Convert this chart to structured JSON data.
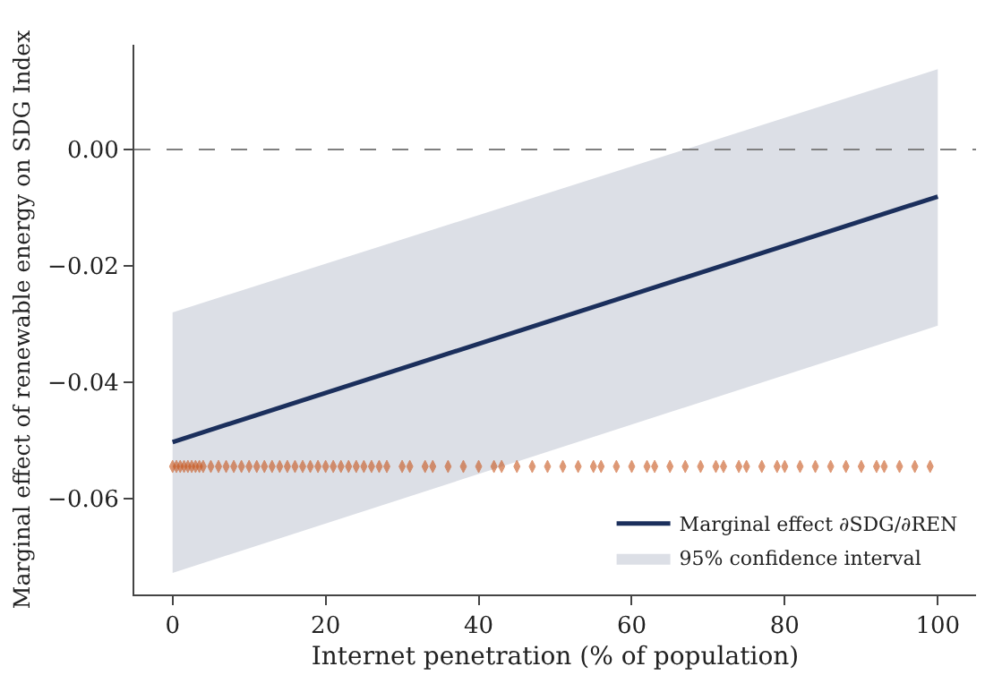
{
  "chart_data": {
    "type": "line",
    "xlabel": "Internet penetration (% of population)",
    "ylabel": "Marginal effect of renewable energy on SDG Index",
    "xlim": [
      -5,
      105
    ],
    "xticks": [
      0,
      20,
      40,
      60,
      80,
      100
    ],
    "ylim": [
      -0.0765,
      0.018
    ],
    "yticks": [
      {
        "value": -0.06,
        "label": "−0.06"
      },
      {
        "value": -0.04,
        "label": "−0.04"
      },
      {
        "value": -0.02,
        "label": "−0.02"
      },
      {
        "value": 0,
        "label": "0.00"
      }
    ],
    "series": [
      {
        "type": "area",
        "name": "95% confidence interval",
        "color": "#dcdfe6",
        "x": [
          0,
          100
        ],
        "values": [
          null,
          null
        ],
        "lower": [
          -0.0728,
          -0.0303
        ],
        "upper": [
          -0.028,
          0.0138
        ]
      },
      {
        "name": "Marginal effect ∂SDG/∂REN",
        "color": "#1b2f5c",
        "x": [
          0,
          100
        ],
        "values": [
          -0.0503,
          -0.0081
        ]
      },
      {
        "type": "scatter",
        "marker": "diamond",
        "color": "#c8541a",
        "x": [
          0,
          0.5,
          1,
          1.5,
          2,
          2.5,
          3,
          3.5,
          4,
          5,
          6,
          7,
          8,
          9,
          10,
          11,
          12,
          13,
          14,
          15,
          16,
          17,
          18,
          19,
          20,
          21,
          22,
          23,
          24,
          25,
          26,
          27,
          28,
          30,
          31,
          33,
          34,
          36,
          38,
          40,
          42,
          43,
          45,
          47,
          49,
          51,
          53,
          55,
          56,
          58,
          60,
          62,
          63,
          65,
          67,
          69,
          71,
          72,
          74,
          75,
          77,
          79,
          80,
          82,
          84,
          86,
          88,
          90,
          92,
          93,
          95,
          97,
          99
        ],
        "values": [
          -0.0545,
          -0.0545,
          -0.0545,
          -0.0545,
          -0.0545,
          -0.0545,
          -0.0545,
          -0.0545,
          -0.0545,
          -0.0545,
          -0.0545,
          -0.0545,
          -0.0545,
          -0.0545,
          -0.0545,
          -0.0545,
          -0.0545,
          -0.0545,
          -0.0545,
          -0.0545,
          -0.0545,
          -0.0545,
          -0.0545,
          -0.0545,
          -0.0545,
          -0.0545,
          -0.0545,
          -0.0545,
          -0.0545,
          -0.0545,
          -0.0545,
          -0.0545,
          -0.0545,
          -0.0545,
          -0.0545,
          -0.0545,
          -0.0545,
          -0.0545,
          -0.0545,
          -0.0545,
          -0.0545,
          -0.0545,
          -0.0545,
          -0.0545,
          -0.0545,
          -0.0545,
          -0.0545,
          -0.0545,
          -0.0545,
          -0.0545,
          -0.0545,
          -0.0545,
          -0.0545,
          -0.0545,
          -0.0545,
          -0.0545,
          -0.0545,
          -0.0545,
          -0.0545,
          -0.0545,
          -0.0545,
          -0.0545,
          -0.0545,
          -0.0545,
          -0.0545,
          -0.0545,
          -0.0545,
          -0.0545,
          -0.0545,
          -0.0545,
          -0.0545,
          -0.0545,
          -0.0545
        ]
      }
    ],
    "ref_lines": [
      {
        "axis": "y",
        "value": 0,
        "color": "#7f7f7f",
        "line_style": "dashed"
      }
    ],
    "legend": "bottom right"
  }
}
